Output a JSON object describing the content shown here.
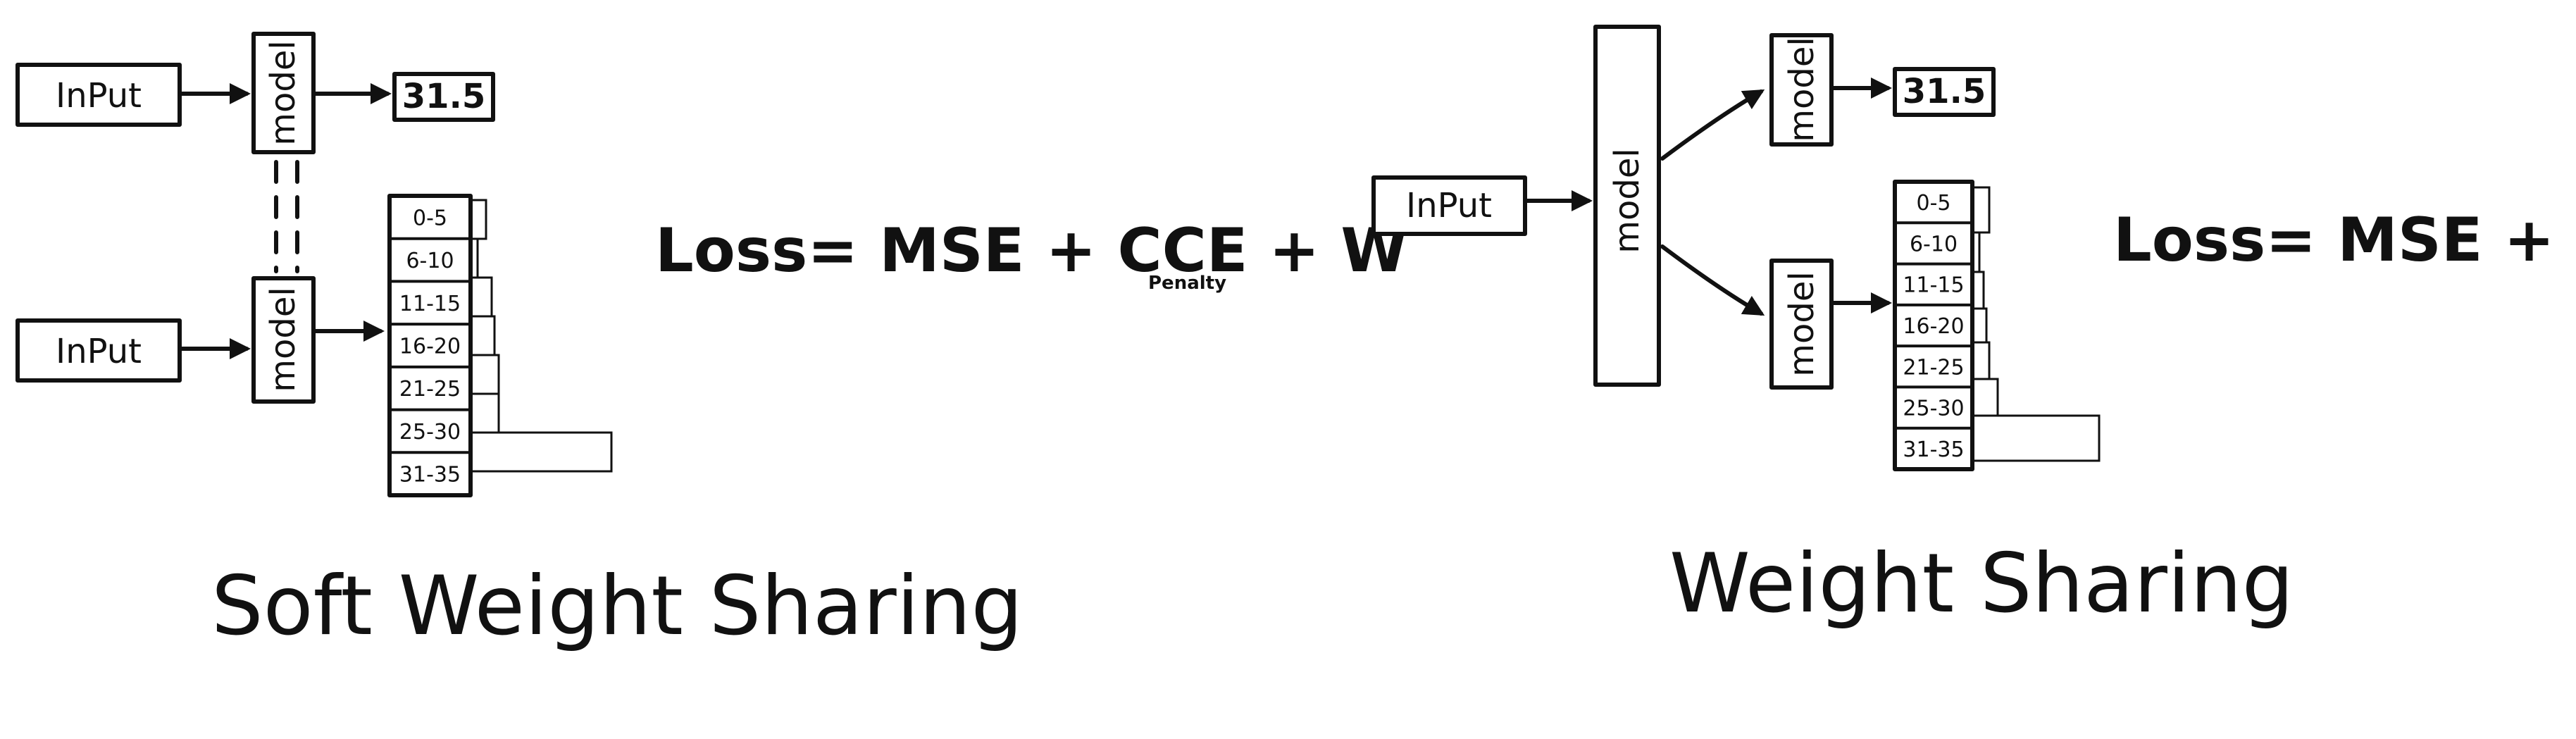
{
  "soft_weight_sharing": {
    "caption": "Soft Weight Sharing",
    "top_input": "InPut",
    "bottom_input": "InPut",
    "top_model": "model",
    "bottom_model": "model",
    "output_value": "31.5",
    "bins": [
      "0-5",
      "6-10",
      "11-15",
      "16-20",
      "21-25",
      "25-30",
      "31-35"
    ],
    "loss_text": "Loss= MSE + CCE + W",
    "loss_subscript": "Penalty"
  },
  "weight_sharing": {
    "caption": "Weight Sharing",
    "input": "InPut",
    "shared_model": "model",
    "top_head": "model",
    "bottom_head": "model",
    "output_value": "31.5",
    "bins": [
      "0-5",
      "6-10",
      "11-15",
      "16-20",
      "21-25",
      "25-30",
      "31-35"
    ],
    "loss_text": "Loss= MSE + CCE"
  },
  "colors": {
    "ink": "#111111",
    "background": "#ffffff"
  }
}
